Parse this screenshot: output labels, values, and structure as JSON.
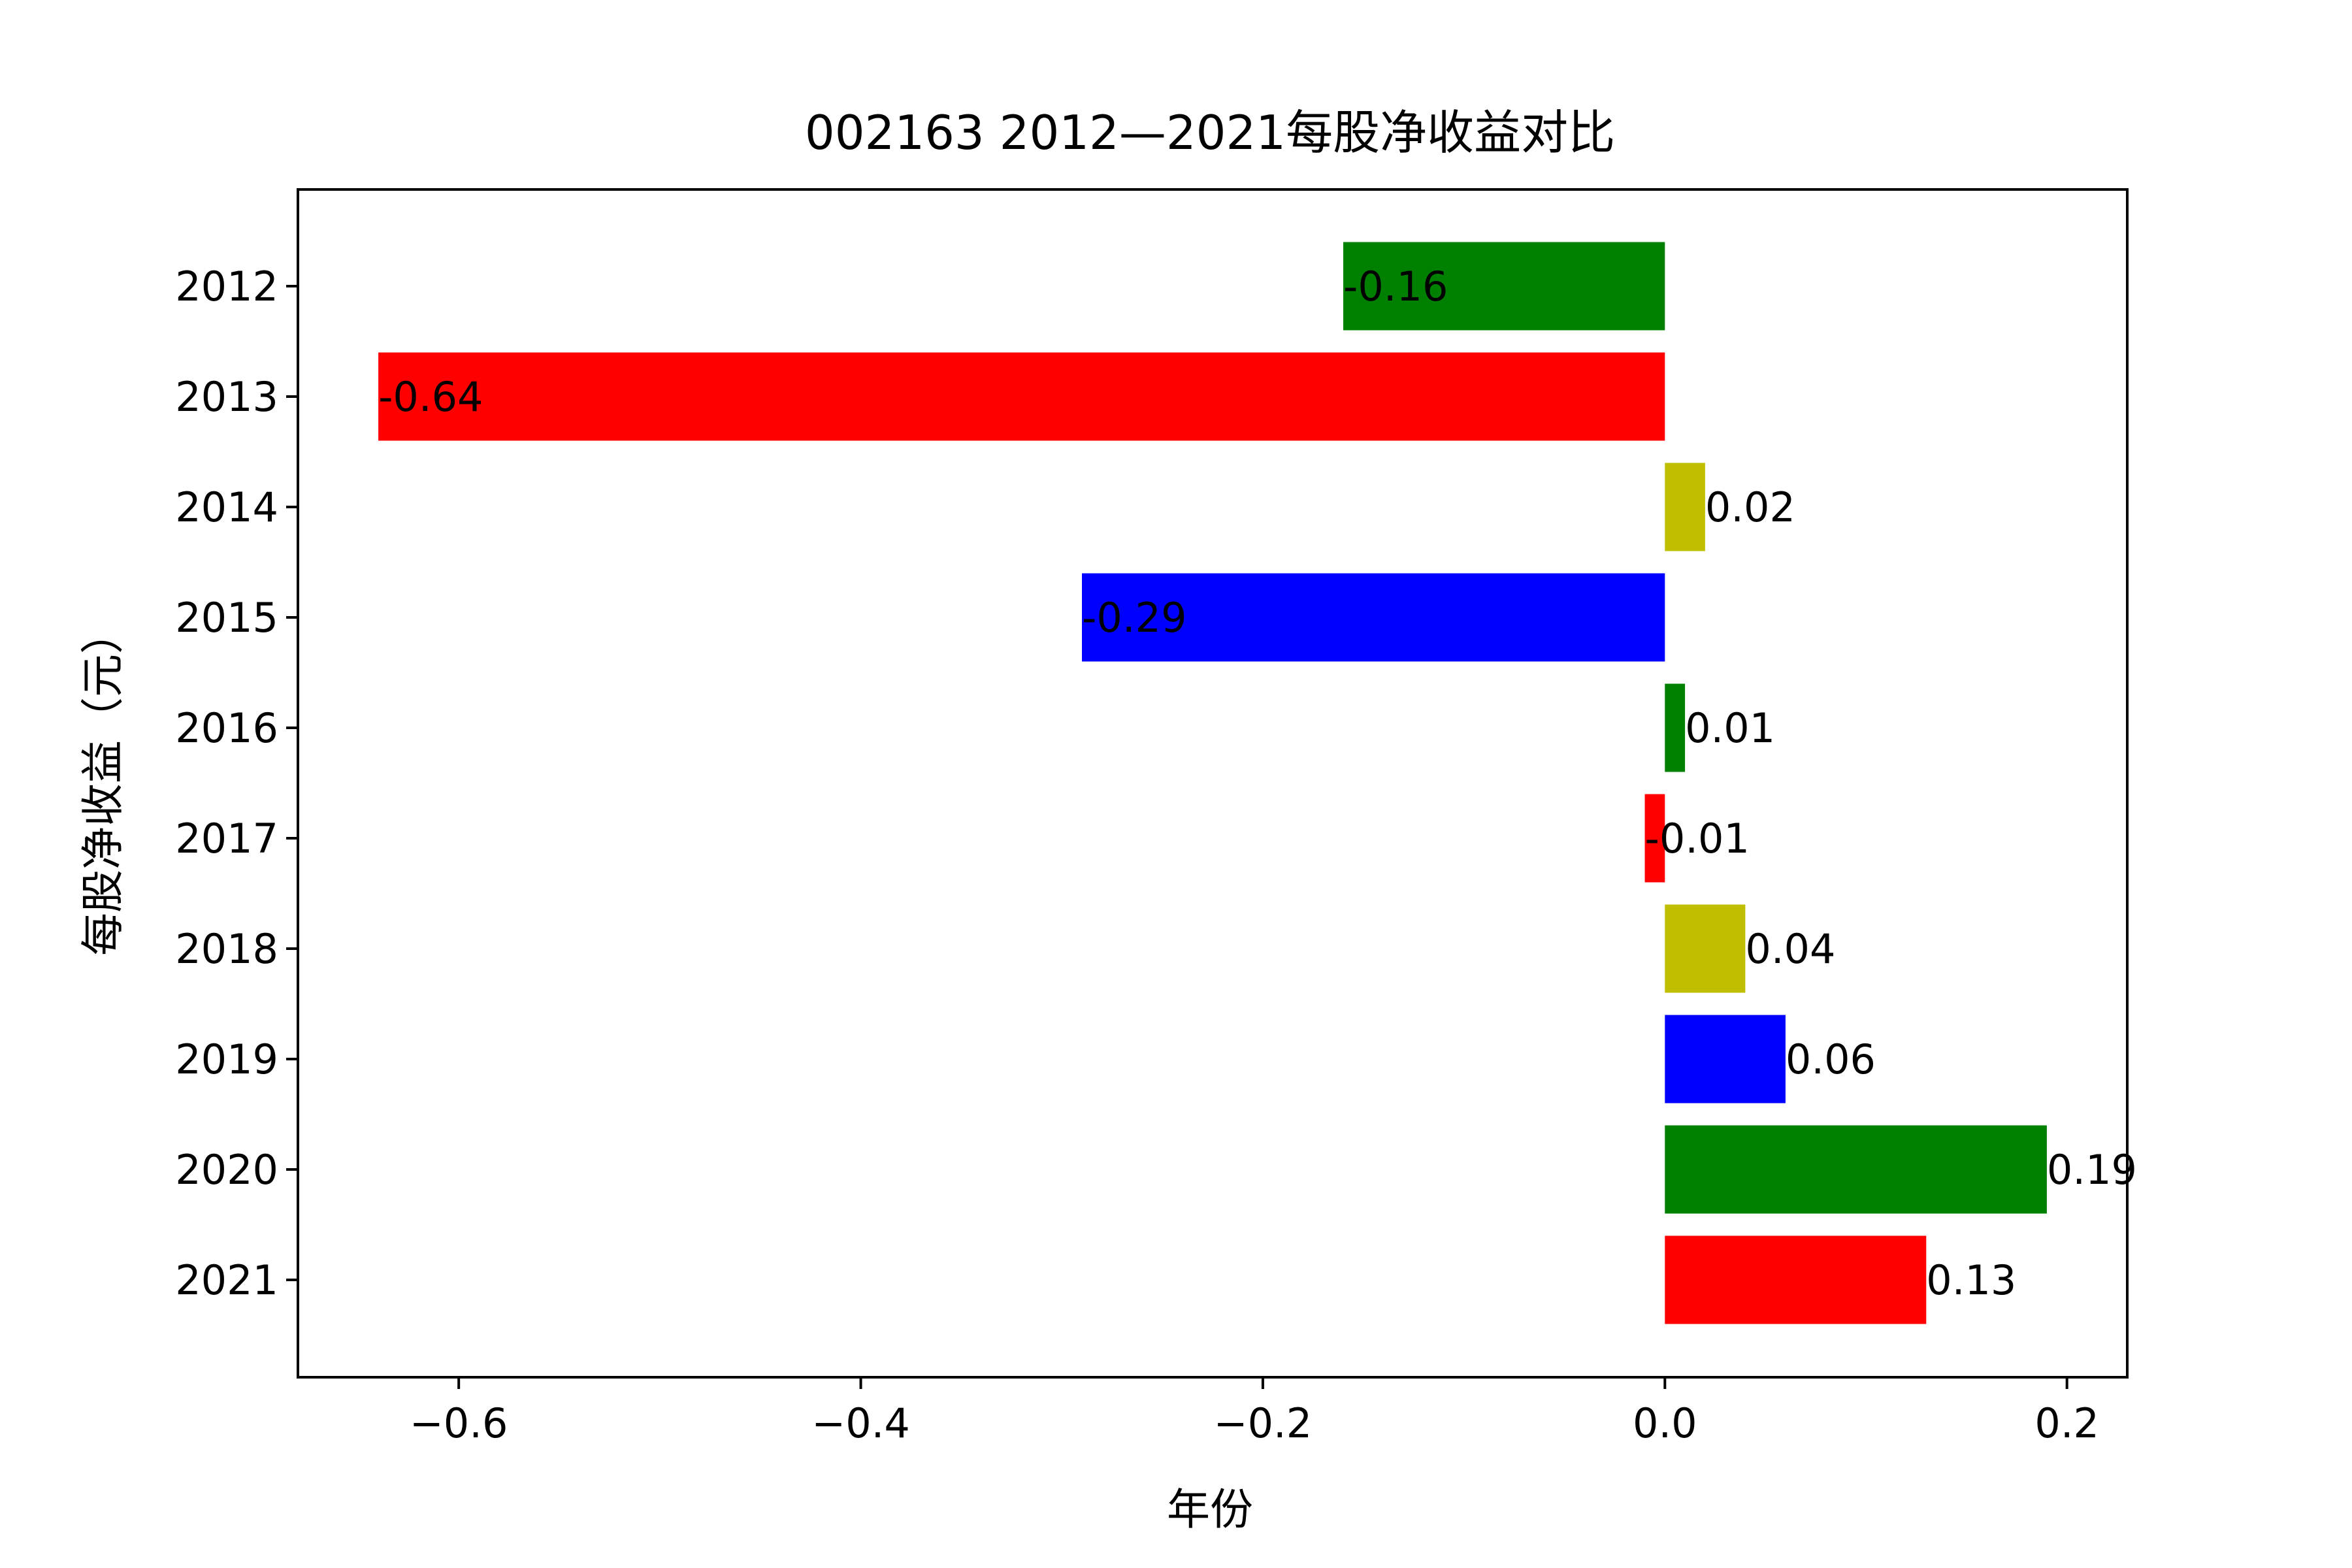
{
  "chart_data": {
    "type": "bar",
    "orientation": "horizontal",
    "title": "002163 2012—2021每股净收益对比",
    "xlabel": "年份",
    "ylabel": "每股净收益（元）",
    "categories": [
      "2012",
      "2013",
      "2014",
      "2015",
      "2016",
      "2017",
      "2018",
      "2019",
      "2020",
      "2021"
    ],
    "values": [
      -0.16,
      -0.64,
      0.02,
      -0.29,
      0.01,
      -0.01,
      0.04,
      0.06,
      0.19,
      0.13
    ],
    "value_labels": [
      "-0.16",
      "-0.64",
      "0.02",
      "-0.29",
      "0.01",
      "-0.01",
      "0.04",
      "0.06",
      "0.19",
      "0.13"
    ],
    "bar_colors": [
      "#008000",
      "#ff0000",
      "#bfbf00",
      "#0000ff",
      "#008000",
      "#ff0000",
      "#bfbf00",
      "#0000ff",
      "#008000",
      "#ff0000"
    ],
    "xlim": [
      -0.68,
      0.23
    ],
    "xticks": [
      -0.6,
      -0.4,
      -0.2,
      0.0,
      0.2
    ],
    "xtick_labels": [
      "−0.6",
      "−0.4",
      "−0.2",
      "0.0",
      "0.2"
    ],
    "grid": false,
    "legend": "none"
  }
}
